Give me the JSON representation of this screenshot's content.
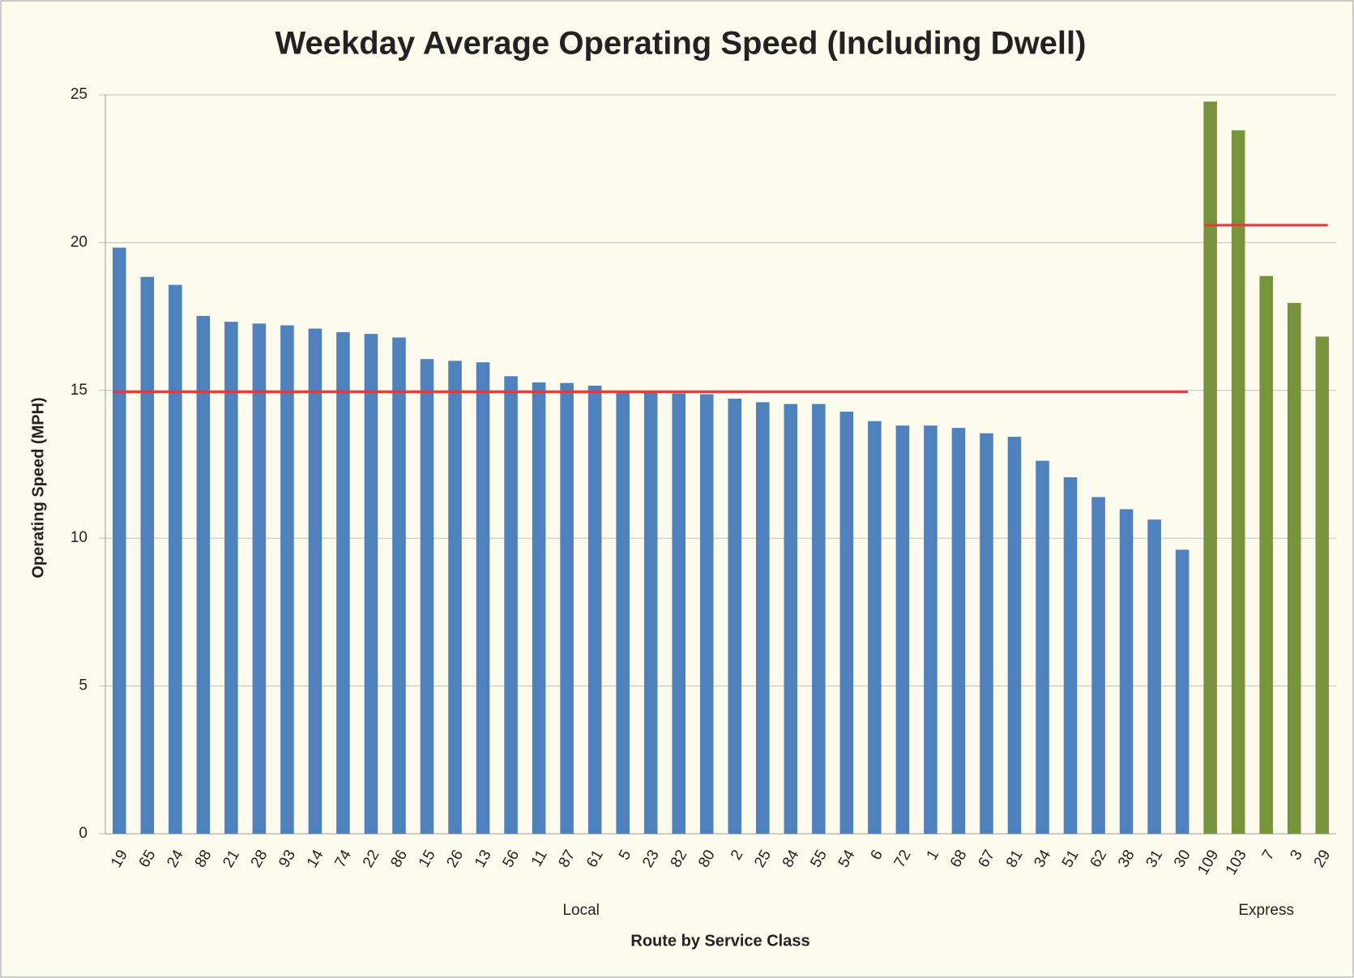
{
  "chart_data": {
    "type": "bar",
    "title": "Weekday Average Operating Speed (Including Dwell)",
    "ylabel": "Operating Speed (MPH)",
    "xlabel": "Route by Service Class",
    "ylim": [
      0,
      25
    ],
    "yticks": [
      0,
      5,
      10,
      15,
      20,
      25
    ],
    "grid": true,
    "groups": [
      {
        "name": "Local",
        "color": "#4f81bd",
        "average": 14.95,
        "average_color": "#e03a3a",
        "categories": [
          "19",
          "65",
          "24",
          "88",
          "21",
          "28",
          "93",
          "14",
          "74",
          "22",
          "86",
          "15",
          "26",
          "13",
          "56",
          "11",
          "87",
          "61",
          "5",
          "23",
          "82",
          "80",
          "2",
          "25",
          "84",
          "55",
          "54",
          "6",
          "72",
          "1",
          "68",
          "67",
          "81",
          "34",
          "51",
          "62",
          "38",
          "31",
          "30"
        ],
        "values": [
          19.83,
          18.84,
          18.57,
          17.52,
          17.32,
          17.26,
          17.2,
          17.09,
          16.97,
          16.91,
          16.79,
          16.06,
          16.0,
          15.95,
          15.48,
          15.27,
          15.25,
          15.16,
          14.98,
          14.92,
          14.9,
          14.87,
          14.72,
          14.6,
          14.54,
          14.54,
          14.28,
          13.96,
          13.81,
          13.81,
          13.73,
          13.55,
          13.43,
          12.62,
          12.06,
          11.39,
          10.98,
          10.63,
          9.61
        ]
      },
      {
        "name": "Express",
        "color": "#77933c",
        "average": 20.59,
        "average_color": "#e03a3a",
        "categories": [
          "109",
          "103",
          "7",
          "3",
          "29"
        ],
        "values": [
          24.77,
          23.8,
          18.87,
          17.96,
          16.82
        ]
      }
    ]
  }
}
